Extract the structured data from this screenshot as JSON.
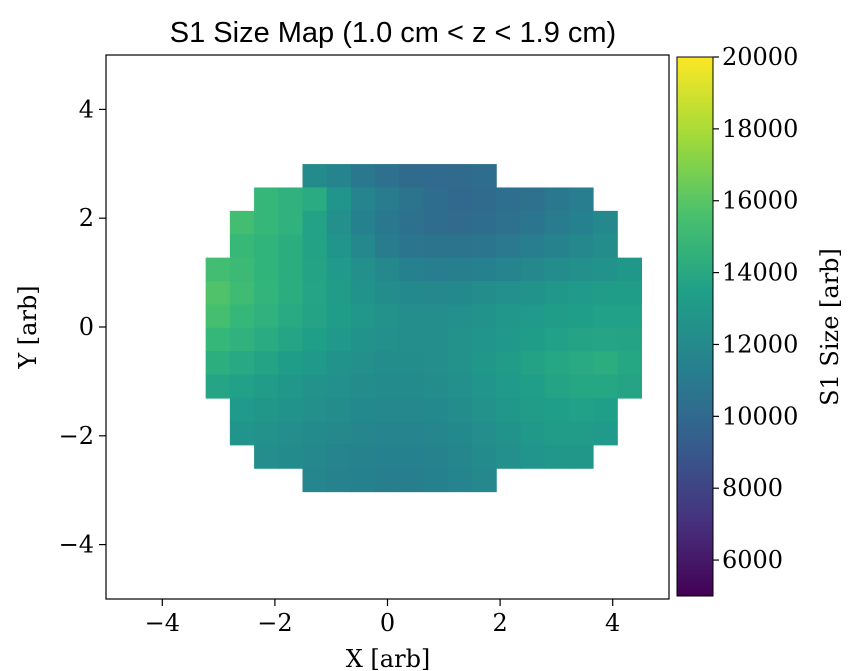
{
  "chart_data": {
    "type": "heatmap",
    "title": "S1 Size Map (1.0 cm < z < 1.9 cm)",
    "xlabel": "X [arb]",
    "ylabel": "Y [arb]",
    "colorbar_label": "S1 Size [arb]",
    "colormap": "viridis",
    "xlim": [
      -5,
      5
    ],
    "ylim": [
      -5,
      5
    ],
    "clim": [
      5000,
      20000
    ],
    "x_ticks": [
      -4,
      -2,
      0,
      2,
      4
    ],
    "y_ticks": [
      -4,
      -2,
      0,
      2,
      4
    ],
    "colorbar_ticks": [
      6000,
      8000,
      10000,
      12000,
      14000,
      16000,
      18000,
      20000
    ],
    "grid": false,
    "bin_size": 0.43,
    "circle_radius": 3.0,
    "rows": [
      {
        "y": 2.78,
        "x_start": -1.51,
        "values": [
          12200,
          11800,
          11000,
          10600,
          10200,
          10100,
          10200,
          10300
        ]
      },
      {
        "y": 2.35,
        "x_start": -2.37,
        "values": [
          15000,
          14600,
          14200,
          12800,
          11800,
          11300,
          10700,
          10300,
          10000,
          10200,
          10400,
          10600,
          11000,
          11400
        ]
      },
      {
        "y": 1.92,
        "x_start": -2.8,
        "values": [
          15400,
          15000,
          14600,
          13600,
          12500,
          11600,
          11000,
          10600,
          10300,
          10200,
          10300,
          10600,
          10900,
          11200,
          11600,
          12000
        ]
      },
      {
        "y": 1.49,
        "x_start": -2.8,
        "values": [
          15100,
          14700,
          14300,
          13600,
          12800,
          12000,
          11300,
          10900,
          10700,
          10700,
          10900,
          11100,
          11400,
          11700,
          12000,
          12300
        ]
      },
      {
        "y": 1.06,
        "x_start": -3.23,
        "values": [
          15400,
          15200,
          14700,
          14300,
          13700,
          13100,
          12500,
          12000,
          11600,
          11400,
          11500,
          11600,
          11800,
          12000,
          12300,
          12500,
          12700,
          12900
        ]
      },
      {
        "y": 0.63,
        "x_start": -3.23,
        "values": [
          15800,
          15300,
          14800,
          14300,
          13800,
          13200,
          12700,
          12300,
          12100,
          12000,
          12100,
          12300,
          12500,
          12700,
          12900,
          13100,
          13200,
          13300
        ]
      },
      {
        "y": 0.2,
        "x_start": -3.23,
        "values": [
          15500,
          15000,
          14600,
          14100,
          13700,
          13300,
          12900,
          12600,
          12400,
          12400,
          12500,
          12700,
          12900,
          13100,
          13300,
          13400,
          13500,
          13500
        ]
      },
      {
        "y": -0.23,
        "x_start": -3.23,
        "values": [
          15000,
          14600,
          14200,
          13800,
          13400,
          13000,
          12700,
          12500,
          12400,
          12400,
          12600,
          12800,
          13000,
          13300,
          13500,
          13700,
          13800,
          13700
        ]
      },
      {
        "y": -0.66,
        "x_start": -3.23,
        "values": [
          14400,
          14000,
          13700,
          13300,
          13000,
          12700,
          12500,
          12300,
          12300,
          12400,
          12600,
          12900,
          13200,
          13600,
          13900,
          14100,
          14300,
          13900
        ]
      },
      {
        "y": -1.09,
        "x_start": -3.23,
        "values": [
          13800,
          13500,
          13200,
          12900,
          12700,
          12500,
          12300,
          12200,
          12200,
          12300,
          12500,
          12800,
          13100,
          13400,
          13700,
          13900,
          13900,
          13700
        ]
      },
      {
        "y": -1.52,
        "x_start": -2.8,
        "values": [
          13100,
          12900,
          12700,
          12500,
          12300,
          12100,
          12000,
          12000,
          12100,
          12300,
          12600,
          12900,
          13200,
          13400,
          13500,
          13400
        ]
      },
      {
        "y": -1.95,
        "x_start": -2.8,
        "values": [
          12800,
          12600,
          12400,
          12200,
          12000,
          11900,
          11800,
          11800,
          11900,
          12100,
          12400,
          12700,
          13000,
          13200,
          13200,
          13100
        ]
      },
      {
        "y": -2.38,
        "x_start": -2.37,
        "values": [
          12400,
          12200,
          12000,
          11800,
          11700,
          11600,
          11600,
          11700,
          11900,
          12200,
          12500,
          12800,
          12900,
          12900
        ]
      },
      {
        "y": -2.81,
        "x_start": -1.51,
        "values": [
          11900,
          11700,
          11600,
          11500,
          11500,
          11600,
          11800,
          12000
        ]
      }
    ]
  }
}
